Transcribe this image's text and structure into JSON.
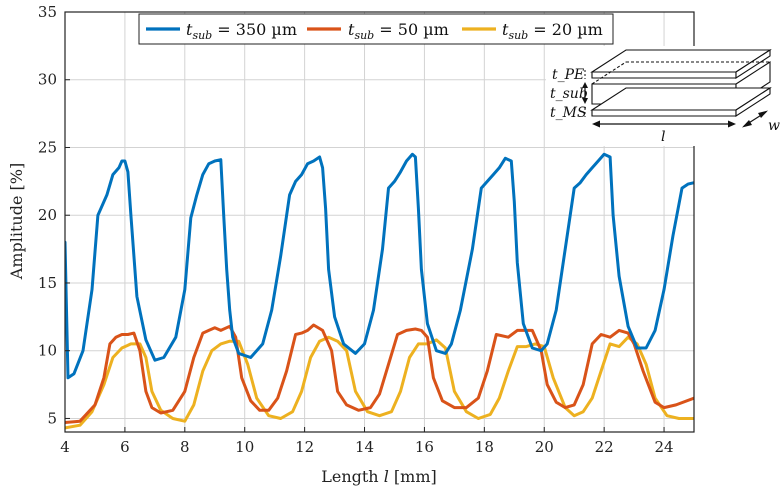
{
  "chart_data": {
    "type": "line",
    "xlabel": "Length l [mm]",
    "ylabel": "Amplitude [%]",
    "xlim": [
      4,
      25
    ],
    "ylim": [
      4,
      35
    ],
    "x_ticks": [
      4,
      6,
      8,
      10,
      12,
      14,
      16,
      18,
      20,
      22,
      24
    ],
    "y_ticks": [
      5,
      10,
      15,
      20,
      25,
      30,
      35
    ],
    "grid": true,
    "legend_position": "top-center",
    "series": [
      {
        "name": "t_sub = 350 µm",
        "legend_label": "t_sub = 350 µm",
        "color": "#0072BD",
        "x": [
          4.0,
          4.1,
          4.3,
          4.6,
          4.9,
          5.1,
          5.2,
          5.4,
          5.6,
          5.8,
          5.9,
          6.0,
          6.1,
          6.2,
          6.4,
          6.7,
          7.0,
          7.3,
          7.7,
          8.0,
          8.2,
          8.4,
          8.6,
          8.8,
          9.0,
          9.2,
          9.3,
          9.4,
          9.5,
          9.6,
          9.8,
          10.2,
          10.6,
          10.9,
          11.2,
          11.5,
          11.7,
          11.9,
          12.1,
          12.3,
          12.5,
          12.6,
          12.7,
          12.8,
          13.0,
          13.3,
          13.7,
          14.0,
          14.3,
          14.6,
          14.8,
          15.0,
          15.2,
          15.4,
          15.6,
          15.7,
          15.8,
          15.9,
          16.1,
          16.4,
          16.7,
          16.9,
          17.2,
          17.6,
          17.9,
          18.1,
          18.3,
          18.5,
          18.7,
          18.9,
          19.0,
          19.1,
          19.3,
          19.6,
          19.9,
          20.1,
          20.4,
          20.7,
          21.0,
          21.2,
          21.4,
          21.6,
          21.8,
          22.0,
          22.2,
          22.3,
          22.5,
          22.8,
          23.1,
          23.4,
          23.7,
          24.0,
          24.3,
          24.6,
          24.8,
          25.0
        ],
        "values": [
          18.0,
          8.0,
          8.3,
          10.0,
          14.5,
          20.0,
          20.5,
          21.5,
          23.0,
          23.5,
          24.0,
          24.0,
          23.2,
          20.0,
          14.0,
          10.8,
          9.3,
          9.5,
          11.0,
          14.5,
          19.8,
          21.5,
          23.0,
          23.8,
          24.0,
          24.1,
          20.0,
          16.0,
          13.0,
          11.0,
          9.8,
          9.5,
          10.5,
          13.0,
          17.0,
          21.5,
          22.5,
          23.0,
          23.8,
          24.0,
          24.3,
          23.5,
          20.5,
          16.0,
          12.5,
          10.5,
          9.8,
          10.5,
          13.0,
          17.5,
          22.0,
          22.5,
          23.2,
          24.0,
          24.5,
          24.3,
          20.5,
          16.0,
          12.0,
          10.0,
          9.8,
          10.5,
          13.0,
          17.5,
          22.0,
          22.5,
          23.0,
          23.5,
          24.2,
          24.0,
          21.0,
          16.5,
          12.0,
          10.2,
          10.0,
          10.5,
          13.0,
          17.5,
          22.0,
          22.4,
          23.0,
          23.5,
          24.0,
          24.5,
          24.3,
          20.0,
          15.5,
          11.8,
          10.2,
          10.2,
          11.5,
          14.5,
          18.5,
          22.0,
          22.3,
          22.4
        ]
      },
      {
        "name": "t_sub = 50 µm",
        "legend_label": "t_sub = 50 µm",
        "color": "#D95319",
        "x": [
          4.0,
          4.5,
          5.0,
          5.3,
          5.5,
          5.7,
          5.9,
          6.1,
          6.3,
          6.5,
          6.7,
          6.9,
          7.2,
          7.6,
          8.0,
          8.3,
          8.6,
          8.8,
          9.0,
          9.2,
          9.5,
          9.7,
          9.9,
          10.2,
          10.5,
          10.8,
          11.1,
          11.4,
          11.7,
          11.9,
          12.1,
          12.3,
          12.6,
          12.9,
          13.1,
          13.4,
          13.8,
          14.2,
          14.5,
          14.8,
          15.1,
          15.4,
          15.7,
          15.9,
          16.1,
          16.3,
          16.6,
          17.0,
          17.4,
          17.8,
          18.1,
          18.4,
          18.8,
          19.1,
          19.3,
          19.6,
          19.9,
          20.1,
          20.4,
          20.7,
          21.0,
          21.3,
          21.6,
          21.9,
          22.2,
          22.5,
          22.8,
          23.0,
          23.3,
          23.7,
          24.0,
          24.4,
          25.0
        ],
        "values": [
          4.7,
          4.8,
          6.0,
          8.0,
          10.5,
          11.0,
          11.2,
          11.2,
          11.3,
          10.0,
          7.0,
          5.8,
          5.4,
          5.6,
          7.0,
          9.5,
          11.3,
          11.5,
          11.7,
          11.5,
          11.8,
          11.0,
          8.0,
          6.3,
          5.6,
          5.6,
          6.5,
          8.5,
          11.2,
          11.3,
          11.5,
          11.9,
          11.5,
          10.0,
          7.0,
          6.0,
          5.6,
          5.8,
          6.8,
          9.0,
          11.2,
          11.5,
          11.6,
          11.5,
          11.0,
          8.0,
          6.3,
          5.8,
          5.8,
          6.5,
          8.5,
          11.2,
          11.0,
          11.5,
          11.5,
          11.5,
          10.0,
          7.5,
          6.2,
          5.8,
          6.0,
          7.5,
          10.5,
          11.2,
          11.0,
          11.5,
          11.3,
          10.5,
          8.5,
          6.2,
          5.8,
          6.0,
          6.5
        ]
      },
      {
        "name": "t_sub = 20 µm",
        "legend_label": "t_sub = 20 µm",
        "color": "#EDB120",
        "x": [
          4.0,
          4.5,
          4.9,
          5.3,
          5.6,
          5.9,
          6.2,
          6.5,
          6.7,
          6.9,
          7.2,
          7.6,
          8.0,
          8.3,
          8.6,
          8.9,
          9.2,
          9.5,
          9.8,
          10.1,
          10.4,
          10.8,
          11.2,
          11.6,
          11.9,
          12.2,
          12.5,
          12.8,
          13.1,
          13.4,
          13.7,
          14.1,
          14.5,
          14.9,
          15.2,
          15.5,
          15.8,
          16.1,
          16.4,
          16.7,
          17.0,
          17.4,
          17.8,
          18.2,
          18.5,
          18.8,
          19.1,
          19.4,
          19.7,
          20.0,
          20.3,
          20.7,
          21.0,
          21.3,
          21.6,
          21.9,
          22.2,
          22.5,
          22.8,
          23.1,
          23.4,
          23.7,
          24.1,
          24.5,
          25.0
        ],
        "values": [
          4.3,
          4.5,
          5.5,
          7.5,
          9.5,
          10.2,
          10.5,
          10.5,
          9.5,
          7.0,
          5.6,
          5.0,
          4.8,
          6.0,
          8.5,
          10.0,
          10.5,
          10.7,
          10.7,
          9.0,
          6.5,
          5.2,
          5.0,
          5.5,
          7.0,
          9.5,
          10.7,
          11.0,
          10.7,
          10.0,
          7.0,
          5.5,
          5.2,
          5.5,
          7.0,
          9.5,
          10.5,
          10.5,
          10.8,
          10.2,
          7.0,
          5.5,
          5.0,
          5.3,
          6.5,
          8.5,
          10.3,
          10.3,
          10.5,
          10.3,
          8.0,
          5.8,
          5.2,
          5.5,
          6.5,
          8.5,
          10.5,
          10.3,
          11.0,
          10.5,
          9.0,
          6.5,
          5.2,
          5.0,
          5.0
        ]
      }
    ],
    "inset": {
      "label_pe": "t_PE",
      "label_sub": "t_sub",
      "label_ms": "t_MS",
      "label_l": "l",
      "label_w": "w"
    }
  },
  "axes_labels": {
    "x_prefix": "Length ",
    "x_var": "l",
    "x_unit": " [mm]",
    "y": "Amplitude [%]"
  },
  "legend": {
    "items": [
      {
        "var": "t",
        "sub": "sub",
        "rest": " = 350 µm"
      },
      {
        "var": "t",
        "sub": "sub",
        "rest": " = 50 µm"
      },
      {
        "var": "t",
        "sub": "sub",
        "rest": " = 20 µm"
      }
    ]
  }
}
